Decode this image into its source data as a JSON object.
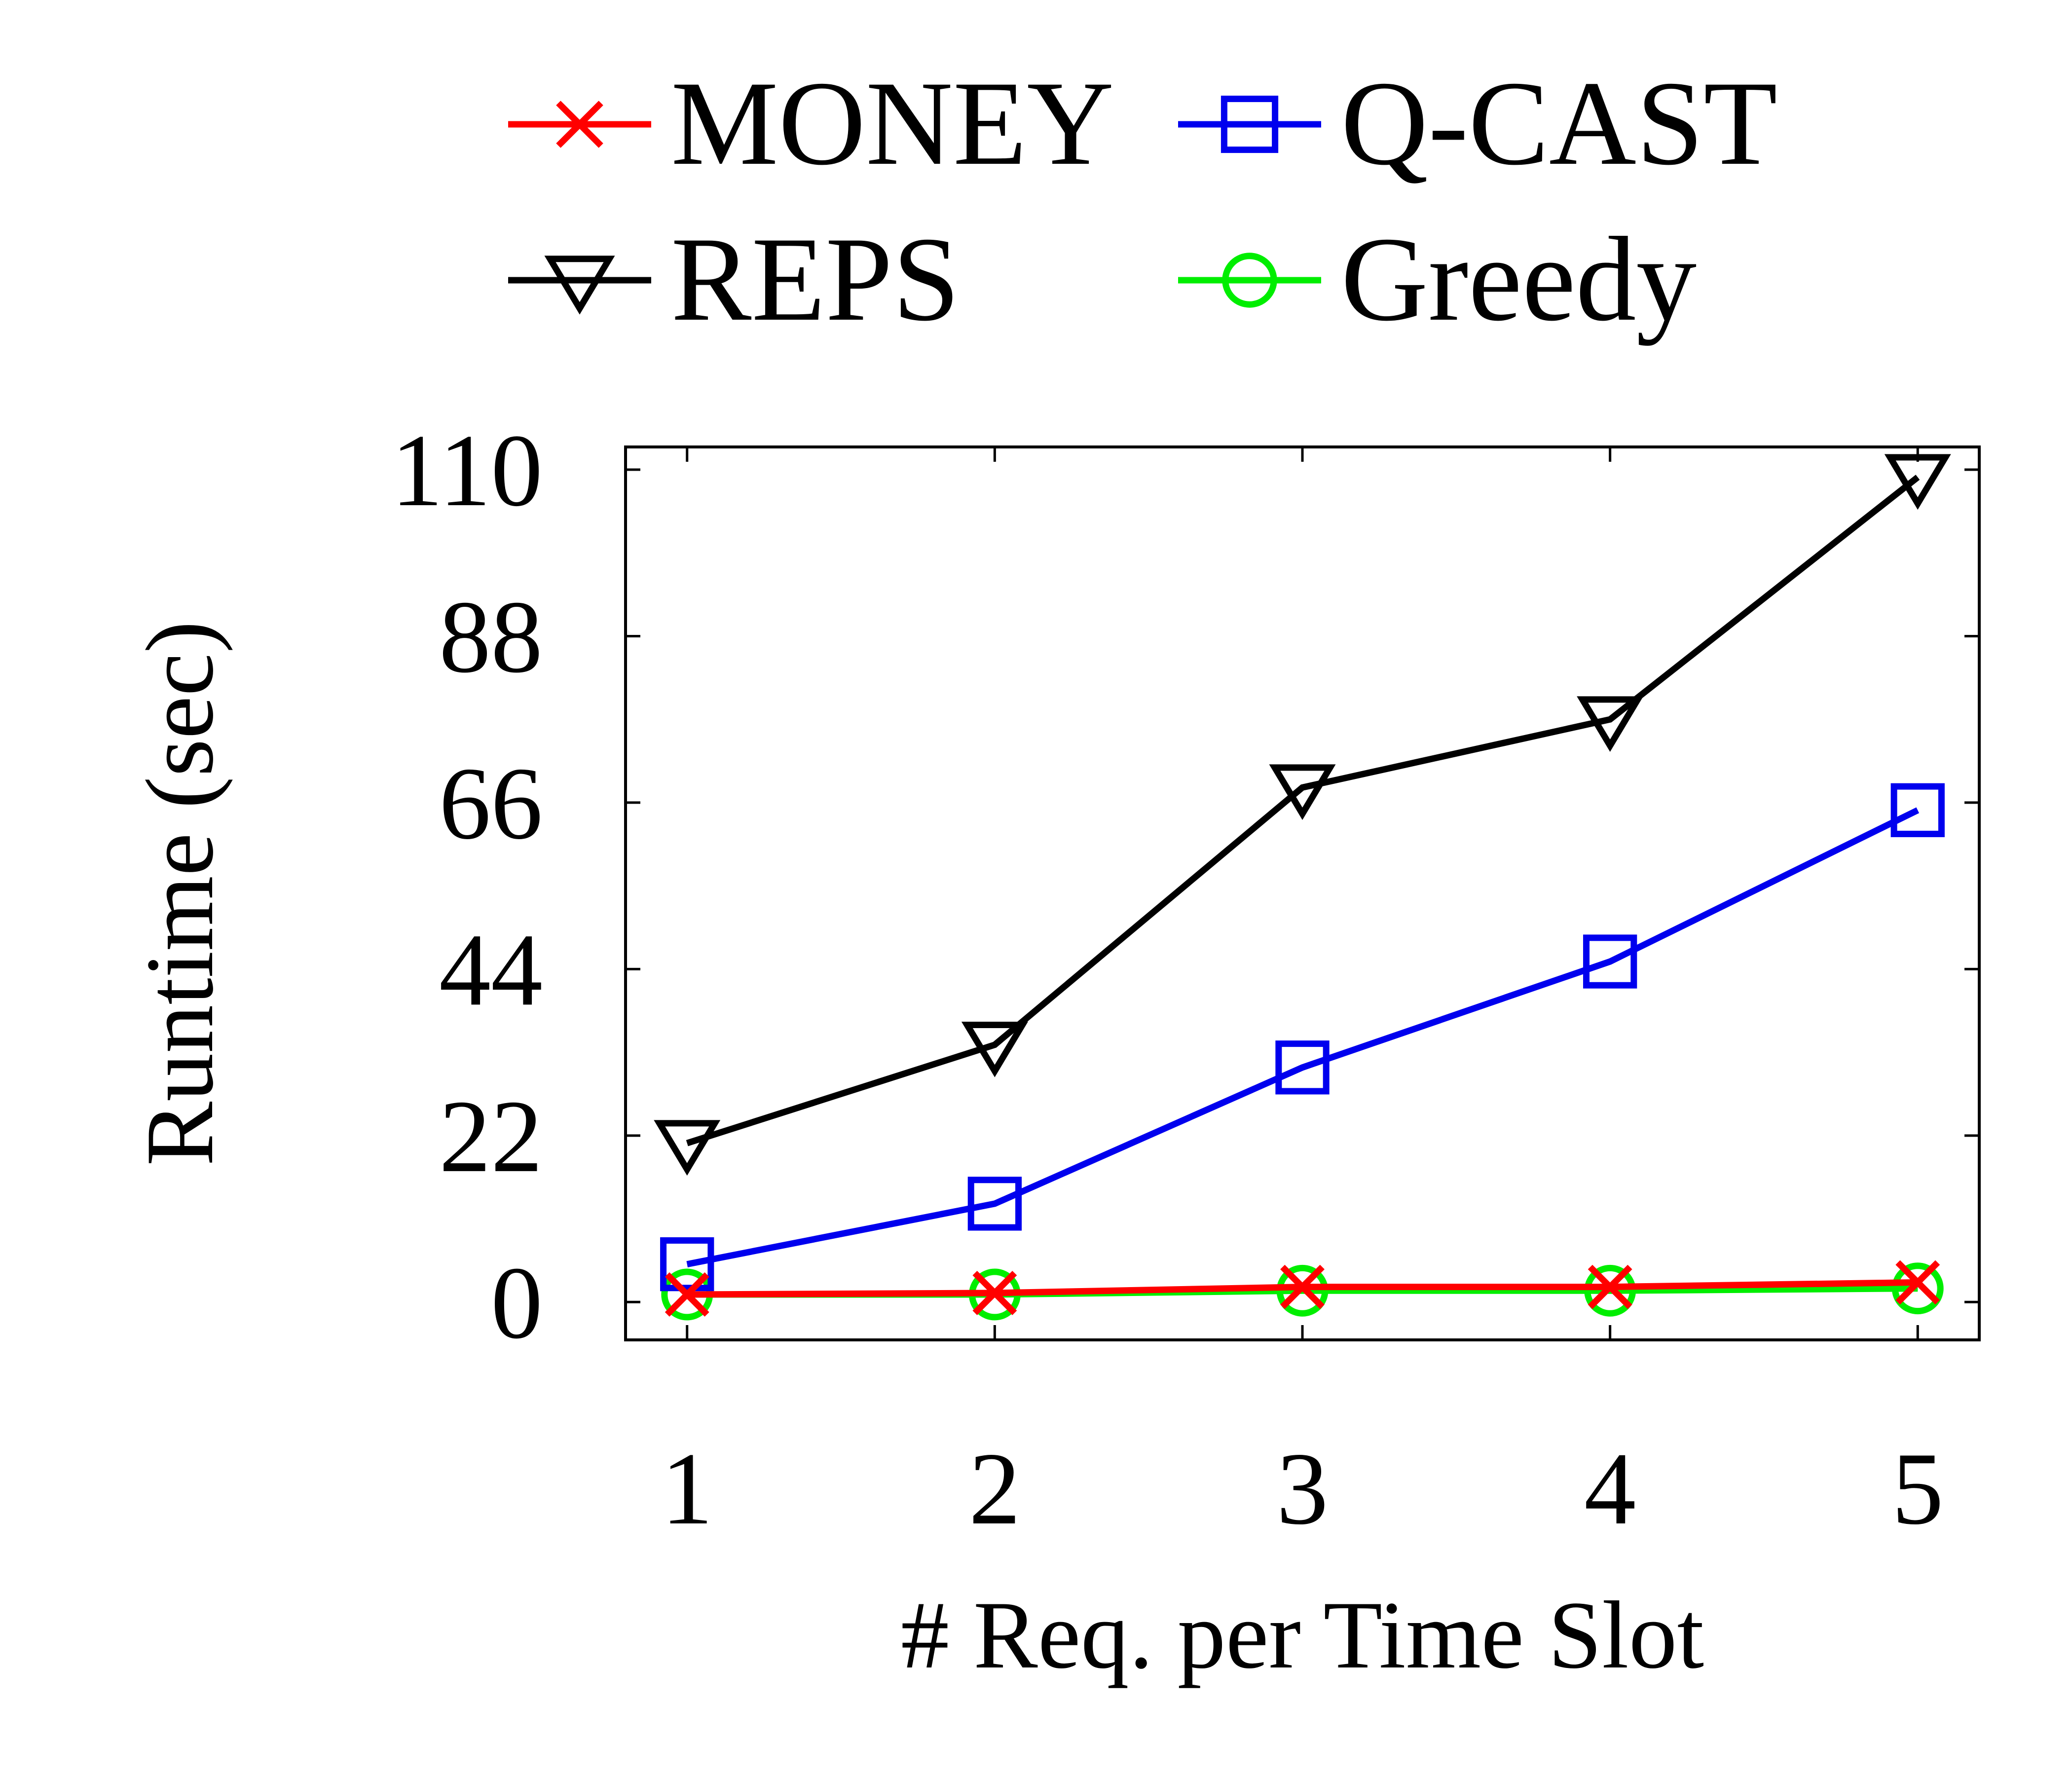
{
  "chart_data": {
    "type": "line",
    "xlabel": "# Req. per Time Slot",
    "ylabel": "Runtime (sec)",
    "x": [
      1,
      2,
      3,
      4,
      5
    ],
    "x_ticks": [
      "1",
      "2",
      "3",
      "4",
      "5"
    ],
    "xlim": [
      0.8,
      5.2
    ],
    "y_ticks": [
      "0",
      "22",
      "44",
      "66",
      "88",
      "110"
    ],
    "ylim": [
      -5,
      113
    ],
    "grid": false,
    "legend_position": "top-center",
    "series": [
      {
        "name": "MONEY",
        "color": "#ff0000",
        "marker": "x",
        "values": [
          1.0,
          1.2,
          2.0,
          2.0,
          2.6
        ]
      },
      {
        "name": "Q-CAST",
        "color": "#0000ee",
        "marker": "square",
        "values": [
          5.0,
          13.0,
          31.0,
          45.0,
          65.0
        ]
      },
      {
        "name": "REPS",
        "color": "#000000",
        "marker": "triangle-down",
        "values": [
          21.0,
          34.0,
          68.0,
          77.0,
          109.0
        ]
      },
      {
        "name": "Greedy",
        "color": "#00ee00",
        "marker": "circle",
        "values": [
          1.0,
          1.0,
          1.5,
          1.5,
          1.8
        ]
      }
    ]
  }
}
